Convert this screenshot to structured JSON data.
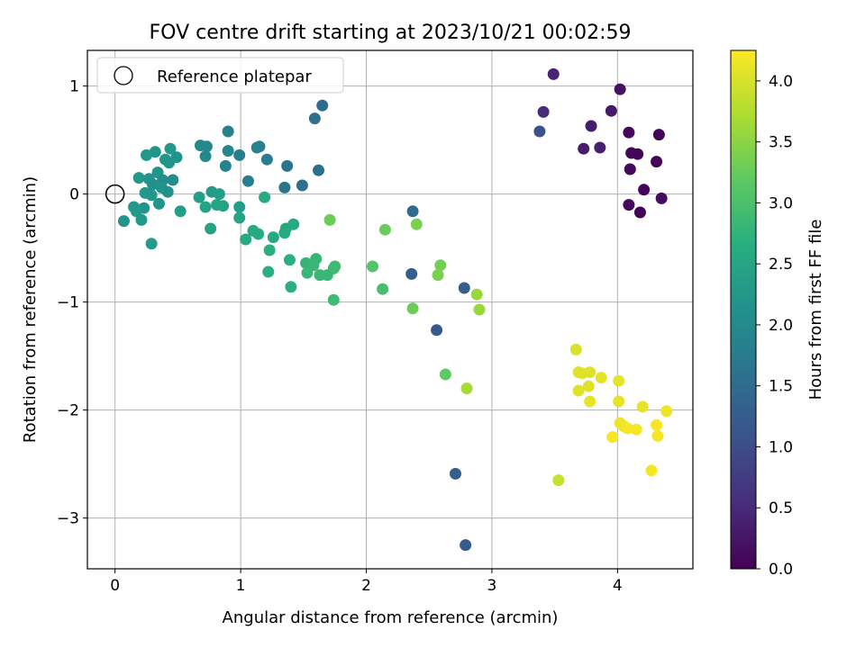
{
  "chart_data": {
    "type": "scatter",
    "title": "FOV centre drift starting at 2023/10/21 00:02:59",
    "xlabel": "Angular distance from reference (arcmin)",
    "ylabel": "Rotation from reference (arcmin)",
    "xlim": [
      -0.22,
      4.6
    ],
    "ylim": [
      -3.47,
      1.33
    ],
    "xticks": [
      0,
      1,
      2,
      3,
      4
    ],
    "yticks": [
      1,
      0,
      -1,
      -2,
      -3
    ],
    "ytick_labels": [
      "1",
      "0",
      "−1",
      "−2",
      "−3"
    ],
    "grid": true,
    "legend": {
      "position": "top-left",
      "entries": [
        "Reference platepar"
      ]
    },
    "reference_point": {
      "x": 0,
      "y": 0,
      "marker": "hollow-circle"
    },
    "colorbar": {
      "label": "Hours from first FF file",
      "colormap": "viridis",
      "range": [
        0.0,
        4.25
      ],
      "ticks": [
        0.0,
        0.5,
        1.0,
        1.5,
        2.0,
        2.5,
        3.0,
        3.5,
        4.0
      ],
      "tick_labels": [
        "0.0",
        "0.5",
        "1.0",
        "1.5",
        "2.0",
        "2.5",
        "3.0",
        "3.5",
        "4.0"
      ]
    },
    "points": [
      {
        "x": 4.02,
        "y": 0.97,
        "t": 0.2
      },
      {
        "x": 3.95,
        "y": 0.77,
        "t": 0.3
      },
      {
        "x": 3.49,
        "y": 1.11,
        "t": 0.45
      },
      {
        "x": 3.41,
        "y": 0.76,
        "t": 0.55
      },
      {
        "x": 3.38,
        "y": 0.58,
        "t": 1.1
      },
      {
        "x": 3.79,
        "y": 0.63,
        "t": 0.35
      },
      {
        "x": 4.09,
        "y": 0.57,
        "t": 0.1
      },
      {
        "x": 4.33,
        "y": 0.55,
        "t": 0.05
      },
      {
        "x": 3.73,
        "y": 0.42,
        "t": 0.35
      },
      {
        "x": 3.86,
        "y": 0.43,
        "t": 0.4
      },
      {
        "x": 4.11,
        "y": 0.38,
        "t": 0.05
      },
      {
        "x": 4.16,
        "y": 0.37,
        "t": 0.05
      },
      {
        "x": 4.31,
        "y": 0.3,
        "t": 0.05
      },
      {
        "x": 4.1,
        "y": 0.23,
        "t": 0.1
      },
      {
        "x": 4.21,
        "y": 0.04,
        "t": 0.05
      },
      {
        "x": 4.35,
        "y": -0.04,
        "t": 0.15
      },
      {
        "x": 4.09,
        "y": -0.1,
        "t": 0.1
      },
      {
        "x": 4.18,
        "y": -0.17,
        "t": 0.05
      },
      {
        "x": 1.65,
        "y": 0.82,
        "t": 1.5
      },
      {
        "x": 1.59,
        "y": 0.7,
        "t": 1.6
      },
      {
        "x": 0.9,
        "y": 0.58,
        "t": 1.85
      },
      {
        "x": 0.68,
        "y": 0.45,
        "t": 2.0
      },
      {
        "x": 0.73,
        "y": 0.44,
        "t": 2.0
      },
      {
        "x": 1.13,
        "y": 0.43,
        "t": 1.9
      },
      {
        "x": 1.15,
        "y": 0.44,
        "t": 1.9
      },
      {
        "x": 0.44,
        "y": 0.42,
        "t": 2.3
      },
      {
        "x": 0.9,
        "y": 0.4,
        "t": 1.95
      },
      {
        "x": 0.32,
        "y": 0.39,
        "t": 2.2
      },
      {
        "x": 0.25,
        "y": 0.36,
        "t": 2.25
      },
      {
        "x": 0.99,
        "y": 0.36,
        "t": 1.8
      },
      {
        "x": 0.72,
        "y": 0.35,
        "t": 2.0
      },
      {
        "x": 0.49,
        "y": 0.34,
        "t": 2.2
      },
      {
        "x": 0.4,
        "y": 0.32,
        "t": 2.25
      },
      {
        "x": 1.21,
        "y": 0.32,
        "t": 1.8
      },
      {
        "x": 0.43,
        "y": 0.29,
        "t": 2.2
      },
      {
        "x": 1.37,
        "y": 0.26,
        "t": 1.65
      },
      {
        "x": 0.88,
        "y": 0.26,
        "t": 1.9
      },
      {
        "x": 1.62,
        "y": 0.22,
        "t": 1.55
      },
      {
        "x": 0.34,
        "y": 0.2,
        "t": 2.2
      },
      {
        "x": 0.19,
        "y": 0.15,
        "t": 2.3
      },
      {
        "x": 0.27,
        "y": 0.14,
        "t": 2.2
      },
      {
        "x": 0.46,
        "y": 0.13,
        "t": 2.1
      },
      {
        "x": 0.38,
        "y": 0.13,
        "t": 2.1
      },
      {
        "x": 1.06,
        "y": 0.12,
        "t": 1.8
      },
      {
        "x": 0.3,
        "y": 0.09,
        "t": 2.15
      },
      {
        "x": 1.49,
        "y": 0.08,
        "t": 1.6
      },
      {
        "x": 1.35,
        "y": 0.06,
        "t": 1.65
      },
      {
        "x": 0.37,
        "y": 0.06,
        "t": 2.2
      },
      {
        "x": 0.42,
        "y": 0.02,
        "t": 2.15
      },
      {
        "x": 0.24,
        "y": 0.01,
        "t": 2.3
      },
      {
        "x": 0.29,
        "y": -0.01,
        "t": 2.25
      },
      {
        "x": 0.77,
        "y": 0.02,
        "t": 2.3
      },
      {
        "x": 0.83,
        "y": 0.0,
        "t": 2.4
      },
      {
        "x": 0.67,
        "y": -0.03,
        "t": 2.4
      },
      {
        "x": 1.19,
        "y": -0.03,
        "t": 2.6
      },
      {
        "x": 0.81,
        "y": -0.1,
        "t": 2.5
      },
      {
        "x": 0.86,
        "y": -0.11,
        "t": 2.5
      },
      {
        "x": 0.72,
        "y": -0.12,
        "t": 2.5
      },
      {
        "x": 0.99,
        "y": -0.12,
        "t": 2.4
      },
      {
        "x": 0.15,
        "y": -0.12,
        "t": 2.25
      },
      {
        "x": 0.23,
        "y": -0.13,
        "t": 2.2
      },
      {
        "x": 0.35,
        "y": -0.09,
        "t": 2.2
      },
      {
        "x": 0.17,
        "y": -0.16,
        "t": 2.3
      },
      {
        "x": 0.52,
        "y": -0.16,
        "t": 2.4
      },
      {
        "x": 0.99,
        "y": -0.22,
        "t": 2.5
      },
      {
        "x": 0.21,
        "y": -0.24,
        "t": 2.25
      },
      {
        "x": 0.07,
        "y": -0.25,
        "t": 2.2
      },
      {
        "x": 0.76,
        "y": -0.32,
        "t": 2.5
      },
      {
        "x": 0.29,
        "y": -0.46,
        "t": 2.35
      },
      {
        "x": 2.37,
        "y": -0.16,
        "t": 1.5
      },
      {
        "x": 1.1,
        "y": -0.34,
        "t": 2.6
      },
      {
        "x": 1.36,
        "y": -0.32,
        "t": 2.55
      },
      {
        "x": 1.14,
        "y": -0.37,
        "t": 2.6
      },
      {
        "x": 1.42,
        "y": -0.28,
        "t": 2.6
      },
      {
        "x": 1.35,
        "y": -0.36,
        "t": 2.6
      },
      {
        "x": 1.04,
        "y": -0.42,
        "t": 2.6
      },
      {
        "x": 1.26,
        "y": -0.4,
        "t": 2.6
      },
      {
        "x": 1.23,
        "y": -0.52,
        "t": 2.7
      },
      {
        "x": 1.39,
        "y": -0.61,
        "t": 2.7
      },
      {
        "x": 1.22,
        "y": -0.72,
        "t": 2.7
      },
      {
        "x": 1.4,
        "y": -0.86,
        "t": 2.7
      },
      {
        "x": 1.71,
        "y": -0.24,
        "t": 3.3
      },
      {
        "x": 2.15,
        "y": -0.33,
        "t": 3.3
      },
      {
        "x": 2.4,
        "y": -0.28,
        "t": 3.4
      },
      {
        "x": 1.6,
        "y": -0.6,
        "t": 2.8
      },
      {
        "x": 1.52,
        "y": -0.64,
        "t": 2.8
      },
      {
        "x": 1.58,
        "y": -0.66,
        "t": 2.85
      },
      {
        "x": 1.75,
        "y": -0.67,
        "t": 2.9
      },
      {
        "x": 1.74,
        "y": -0.69,
        "t": 2.9
      },
      {
        "x": 1.53,
        "y": -0.73,
        "t": 2.85
      },
      {
        "x": 1.63,
        "y": -0.75,
        "t": 2.85
      },
      {
        "x": 1.69,
        "y": -0.75,
        "t": 2.85
      },
      {
        "x": 1.74,
        "y": -0.98,
        "t": 2.9
      },
      {
        "x": 2.05,
        "y": -0.67,
        "t": 3.1
      },
      {
        "x": 2.13,
        "y": -0.88,
        "t": 3.0
      },
      {
        "x": 2.59,
        "y": -0.66,
        "t": 3.35
      },
      {
        "x": 2.57,
        "y": -0.75,
        "t": 3.4
      },
      {
        "x": 2.37,
        "y": -1.06,
        "t": 3.3
      },
      {
        "x": 2.36,
        "y": -0.74,
        "t": 1.3
      },
      {
        "x": 2.78,
        "y": -0.87,
        "t": 1.3
      },
      {
        "x": 2.56,
        "y": -1.26,
        "t": 1.2
      },
      {
        "x": 2.88,
        "y": -0.93,
        "t": 3.6
      },
      {
        "x": 2.9,
        "y": -1.07,
        "t": 3.6
      },
      {
        "x": 2.63,
        "y": -1.67,
        "t": 3.2
      },
      {
        "x": 2.8,
        "y": -1.8,
        "t": 3.7
      },
      {
        "x": 2.71,
        "y": -2.59,
        "t": 1.3
      },
      {
        "x": 2.79,
        "y": -3.25,
        "t": 1.25
      },
      {
        "x": 3.67,
        "y": -1.44,
        "t": 4.0
      },
      {
        "x": 3.69,
        "y": -1.65,
        "t": 4.05
      },
      {
        "x": 3.72,
        "y": -1.66,
        "t": 4.05
      },
      {
        "x": 3.78,
        "y": -1.65,
        "t": 4.05
      },
      {
        "x": 3.87,
        "y": -1.7,
        "t": 4.1
      },
      {
        "x": 4.01,
        "y": -1.73,
        "t": 4.1
      },
      {
        "x": 3.77,
        "y": -1.78,
        "t": 4.05
      },
      {
        "x": 3.69,
        "y": -1.82,
        "t": 4.05
      },
      {
        "x": 3.78,
        "y": -1.92,
        "t": 4.1
      },
      {
        "x": 4.01,
        "y": -1.92,
        "t": 4.1
      },
      {
        "x": 4.2,
        "y": -1.97,
        "t": 4.1
      },
      {
        "x": 4.39,
        "y": -2.01,
        "t": 4.15
      },
      {
        "x": 4.02,
        "y": -2.12,
        "t": 4.15
      },
      {
        "x": 4.05,
        "y": -2.15,
        "t": 4.15
      },
      {
        "x": 4.08,
        "y": -2.17,
        "t": 4.2
      },
      {
        "x": 4.15,
        "y": -2.18,
        "t": 4.2
      },
      {
        "x": 4.31,
        "y": -2.14,
        "t": 4.2
      },
      {
        "x": 3.96,
        "y": -2.25,
        "t": 4.2
      },
      {
        "x": 4.32,
        "y": -2.24,
        "t": 4.2
      },
      {
        "x": 4.27,
        "y": -2.56,
        "t": 4.2
      },
      {
        "x": 3.53,
        "y": -2.65,
        "t": 3.9
      }
    ]
  }
}
